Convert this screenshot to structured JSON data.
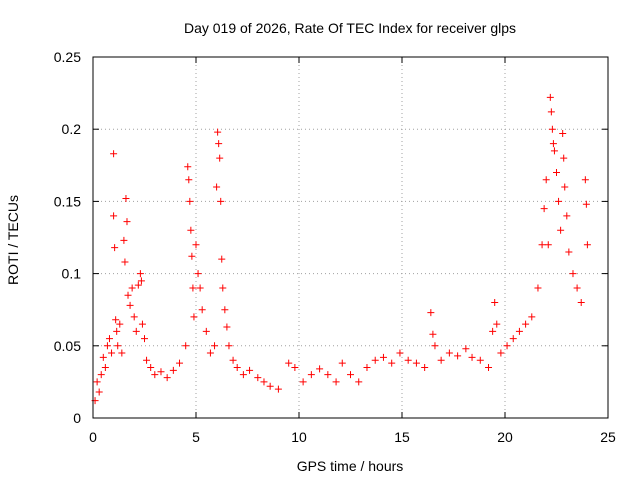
{
  "chart_data": {
    "type": "scatter",
    "title": "Day 019 of 2026, Rate Of TEC Index for receiver glps",
    "xlabel": "GPS time / hours",
    "ylabel": "ROTI / TECUs",
    "xlim": [
      0,
      25
    ],
    "ylim": [
      0,
      0.25
    ],
    "xticks": [
      0,
      5,
      10,
      15,
      20,
      25
    ],
    "xtick_labels": [
      "0",
      "5",
      "10",
      "15",
      "20",
      "25"
    ],
    "yticks": [
      0,
      0.05,
      0.1,
      0.15,
      0.2,
      0.25
    ],
    "ytick_labels": [
      "0",
      "0.05",
      "0.1",
      "0.15",
      "0.2",
      "0.25"
    ],
    "grid": true,
    "marker": "+",
    "color": "#ff0000",
    "series": [
      {
        "name": "ROTI",
        "points": [
          [
            0.1,
            0.012
          ],
          [
            0.2,
            0.025
          ],
          [
            0.3,
            0.018
          ],
          [
            0.4,
            0.03
          ],
          [
            0.5,
            0.042
          ],
          [
            0.6,
            0.035
          ],
          [
            0.7,
            0.05
          ],
          [
            0.8,
            0.055
          ],
          [
            0.9,
            0.045
          ],
          [
            1.0,
            0.183
          ],
          [
            1.0,
            0.14
          ],
          [
            1.05,
            0.118
          ],
          [
            1.1,
            0.068
          ],
          [
            1.15,
            0.06
          ],
          [
            1.2,
            0.05
          ],
          [
            1.3,
            0.065
          ],
          [
            1.4,
            0.045
          ],
          [
            1.5,
            0.123
          ],
          [
            1.55,
            0.108
          ],
          [
            1.6,
            0.152
          ],
          [
            1.65,
            0.136
          ],
          [
            1.7,
            0.085
          ],
          [
            1.8,
            0.078
          ],
          [
            1.9,
            0.09
          ],
          [
            2.0,
            0.07
          ],
          [
            2.1,
            0.06
          ],
          [
            2.2,
            0.092
          ],
          [
            2.3,
            0.1
          ],
          [
            2.35,
            0.095
          ],
          [
            2.4,
            0.065
          ],
          [
            2.5,
            0.055
          ],
          [
            2.6,
            0.04
          ],
          [
            2.8,
            0.035
          ],
          [
            3.0,
            0.03
          ],
          [
            3.3,
            0.032
          ],
          [
            3.6,
            0.028
          ],
          [
            3.9,
            0.033
          ],
          [
            4.2,
            0.038
          ],
          [
            4.5,
            0.05
          ],
          [
            4.6,
            0.174
          ],
          [
            4.65,
            0.165
          ],
          [
            4.7,
            0.15
          ],
          [
            4.75,
            0.13
          ],
          [
            4.8,
            0.112
          ],
          [
            4.85,
            0.09
          ],
          [
            4.9,
            0.07
          ],
          [
            5.0,
            0.12
          ],
          [
            5.1,
            0.1
          ],
          [
            5.2,
            0.09
          ],
          [
            5.3,
            0.075
          ],
          [
            5.5,
            0.06
          ],
          [
            5.7,
            0.045
          ],
          [
            5.9,
            0.05
          ],
          [
            6.0,
            0.16
          ],
          [
            6.05,
            0.198
          ],
          [
            6.1,
            0.19
          ],
          [
            6.15,
            0.18
          ],
          [
            6.2,
            0.15
          ],
          [
            6.25,
            0.11
          ],
          [
            6.3,
            0.09
          ],
          [
            6.4,
            0.075
          ],
          [
            6.5,
            0.063
          ],
          [
            6.6,
            0.05
          ],
          [
            6.8,
            0.04
          ],
          [
            7.0,
            0.035
          ],
          [
            7.3,
            0.03
          ],
          [
            7.6,
            0.033
          ],
          [
            8.0,
            0.028
          ],
          [
            8.3,
            0.025
          ],
          [
            8.6,
            0.022
          ],
          [
            9.0,
            0.02
          ],
          [
            9.5,
            0.038
          ],
          [
            9.8,
            0.035
          ],
          [
            10.2,
            0.025
          ],
          [
            10.6,
            0.03
          ],
          [
            11.0,
            0.034
          ],
          [
            11.4,
            0.03
          ],
          [
            11.8,
            0.025
          ],
          [
            12.1,
            0.038
          ],
          [
            12.5,
            0.03
          ],
          [
            12.9,
            0.025
          ],
          [
            13.3,
            0.035
          ],
          [
            13.7,
            0.04
          ],
          [
            14.1,
            0.042
          ],
          [
            14.5,
            0.038
          ],
          [
            14.9,
            0.045
          ],
          [
            15.3,
            0.04
          ],
          [
            15.7,
            0.038
          ],
          [
            16.1,
            0.035
          ],
          [
            16.4,
            0.073
          ],
          [
            16.5,
            0.058
          ],
          [
            16.6,
            0.05
          ],
          [
            16.9,
            0.04
          ],
          [
            17.3,
            0.045
          ],
          [
            17.7,
            0.043
          ],
          [
            18.1,
            0.048
          ],
          [
            18.4,
            0.042
          ],
          [
            18.8,
            0.04
          ],
          [
            19.2,
            0.035
          ],
          [
            19.4,
            0.06
          ],
          [
            19.5,
            0.08
          ],
          [
            19.6,
            0.065
          ],
          [
            19.8,
            0.045
          ],
          [
            20.1,
            0.05
          ],
          [
            20.4,
            0.055
          ],
          [
            20.7,
            0.06
          ],
          [
            21.0,
            0.065
          ],
          [
            21.3,
            0.07
          ],
          [
            21.6,
            0.09
          ],
          [
            21.8,
            0.12
          ],
          [
            21.9,
            0.145
          ],
          [
            22.0,
            0.165
          ],
          [
            22.1,
            0.12
          ],
          [
            22.2,
            0.222
          ],
          [
            22.25,
            0.212
          ],
          [
            22.3,
            0.2
          ],
          [
            22.35,
            0.19
          ],
          [
            22.4,
            0.185
          ],
          [
            22.5,
            0.17
          ],
          [
            22.6,
            0.15
          ],
          [
            22.7,
            0.13
          ],
          [
            22.8,
            0.197
          ],
          [
            22.85,
            0.18
          ],
          [
            22.9,
            0.16
          ],
          [
            23.0,
            0.14
          ],
          [
            23.1,
            0.115
          ],
          [
            23.3,
            0.1
          ],
          [
            23.5,
            0.09
          ],
          [
            23.7,
            0.08
          ],
          [
            23.9,
            0.165
          ],
          [
            23.95,
            0.148
          ],
          [
            24.0,
            0.12
          ]
        ]
      }
    ]
  }
}
